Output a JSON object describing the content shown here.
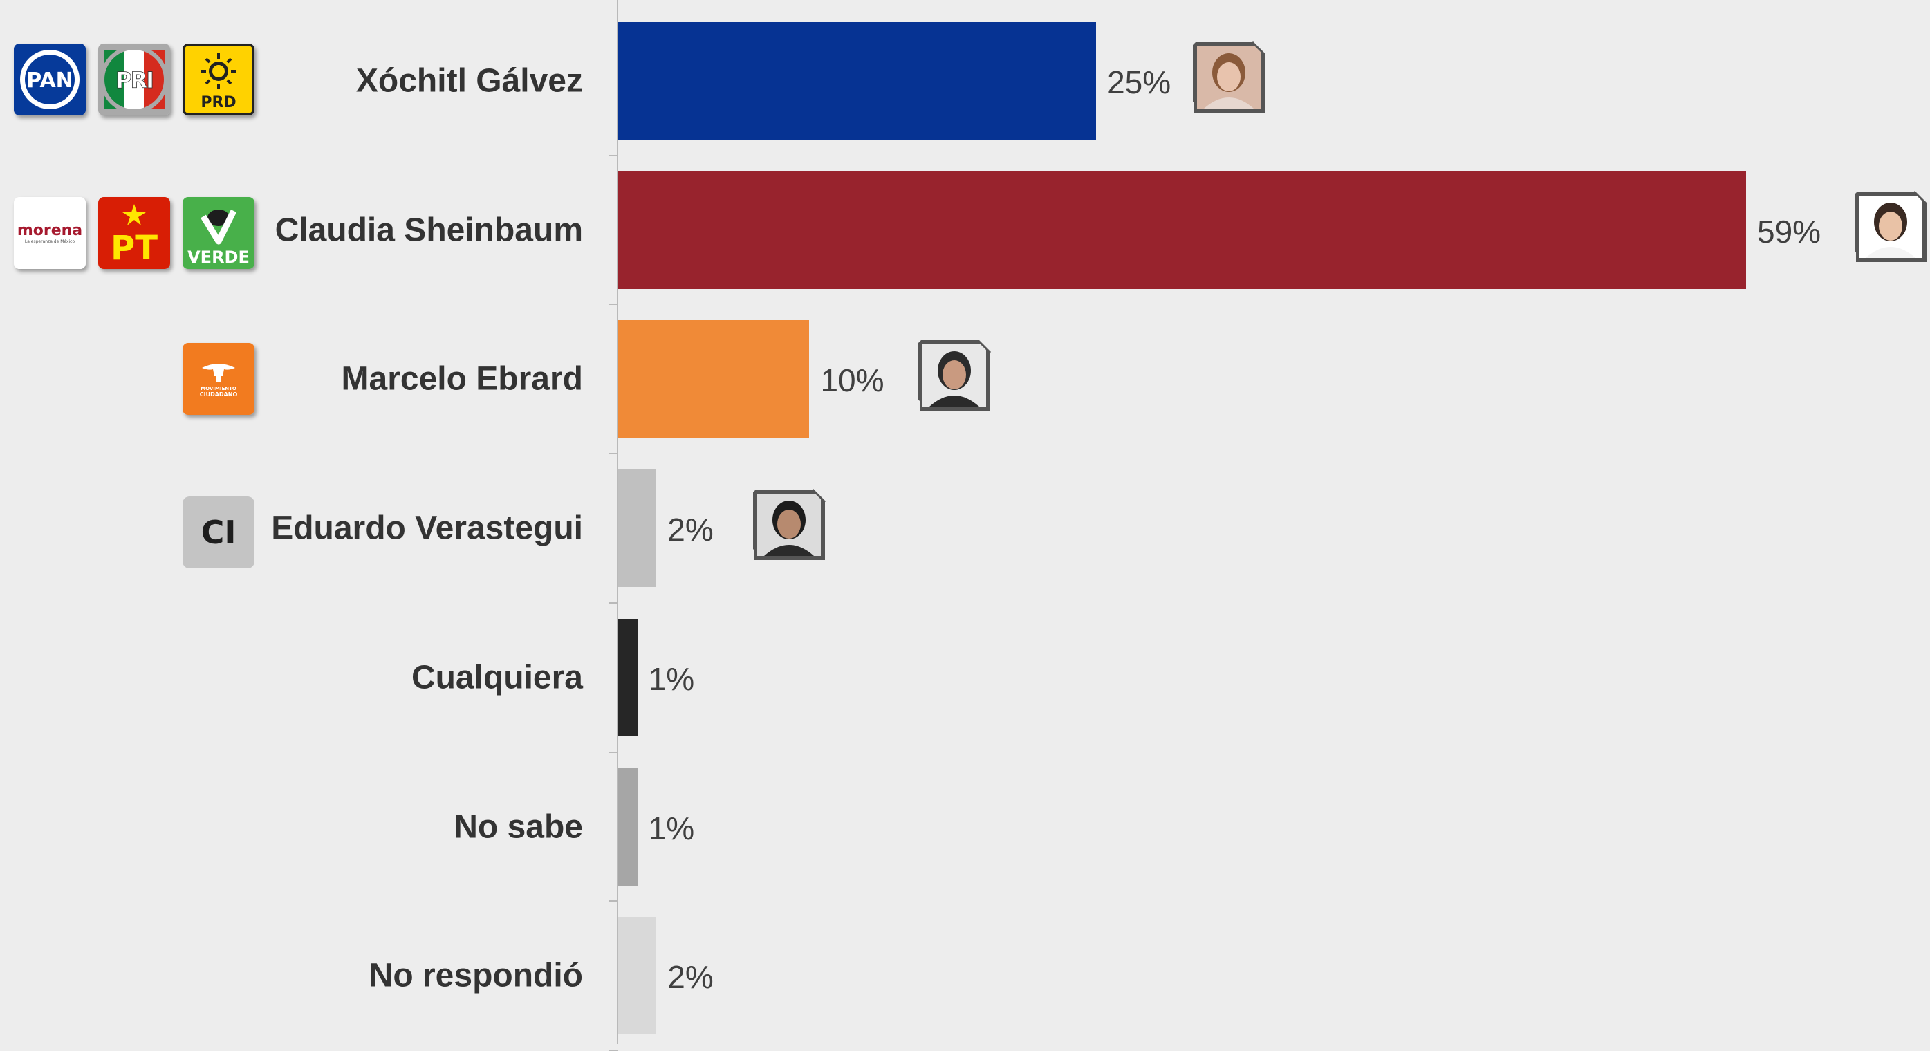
{
  "chart_data": {
    "type": "bar",
    "orientation": "horizontal",
    "categories": [
      "Xóchitl Gálvez",
      "Claudia Sheinbaum",
      "Marcelo Ebrard",
      "Eduardo Verastegui",
      "Cualquiera",
      "No sabe",
      "No respondió"
    ],
    "values": [
      25,
      59,
      10,
      2,
      1,
      1,
      2
    ],
    "value_labels": [
      "25%",
      "59%",
      "10%",
      "2%",
      "1%",
      "1%",
      "2%"
    ],
    "bar_colors": [
      "#063393",
      "#98232d",
      "#f08a37",
      "#c0c0c0",
      "#262626",
      "#a6a6a6",
      "#d9d9d9"
    ],
    "unit": "%",
    "xlim": [
      0,
      59
    ],
    "grid": false,
    "legend": "none"
  },
  "party_logos": {
    "pan": "PAN",
    "pri": "PRI",
    "prd": "PRD",
    "morena": "morena",
    "morena_tagline": "La esperanza de México",
    "pt": "PT",
    "verde": "VERDE",
    "mc_line1": "MOVIMIENTO",
    "mc_line2": "CIUDADANO",
    "ci": "CI"
  },
  "icons": [
    "candidate-photo-icon"
  ]
}
